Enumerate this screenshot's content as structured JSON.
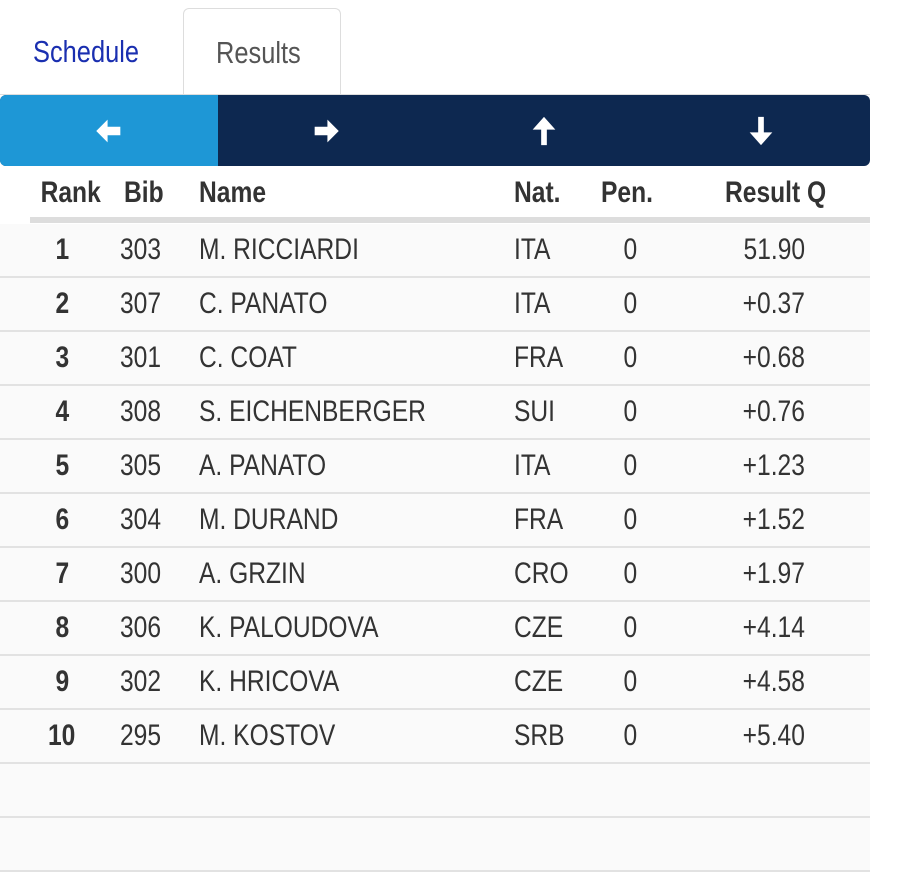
{
  "tabs": [
    {
      "label": "Schedule",
      "active": false
    },
    {
      "label": "Results",
      "active": true
    }
  ],
  "nav": [
    {
      "icon": "arrow-left-icon",
      "active": true
    },
    {
      "icon": "arrow-right-icon"
    },
    {
      "icon": "arrow-up-icon"
    },
    {
      "icon": "arrow-down-icon"
    }
  ],
  "colors": {
    "nav_bg": "#0d2850",
    "nav_active": "#1e97d6",
    "link": "#1a2fb0"
  },
  "headers": {
    "rank": "Rank",
    "bib": "Bib",
    "name": "Name",
    "nat": "Nat.",
    "pen": "Pen.",
    "result": "Result Q"
  },
  "rows": [
    {
      "rank": "1",
      "bib": "303",
      "name": "M. RICCIARDI",
      "nat": "ITA",
      "pen": "0",
      "result": "51.90"
    },
    {
      "rank": "2",
      "bib": "307",
      "name": "C. PANATO",
      "nat": "ITA",
      "pen": "0",
      "result": "+0.37"
    },
    {
      "rank": "3",
      "bib": "301",
      "name": "C. COAT",
      "nat": "FRA",
      "pen": "0",
      "result": "+0.68"
    },
    {
      "rank": "4",
      "bib": "308",
      "name": "S. EICHENBERGER",
      "nat": "SUI",
      "pen": "0",
      "result": "+0.76"
    },
    {
      "rank": "5",
      "bib": "305",
      "name": "A. PANATO",
      "nat": "ITA",
      "pen": "0",
      "result": "+1.23"
    },
    {
      "rank": "6",
      "bib": "304",
      "name": "M. DURAND",
      "nat": "FRA",
      "pen": "0",
      "result": "+1.52"
    },
    {
      "rank": "7",
      "bib": "300",
      "name": "A. GRZIN",
      "nat": "CRO",
      "pen": "0",
      "result": "+1.97"
    },
    {
      "rank": "8",
      "bib": "306",
      "name": "K. PALOUDOVA",
      "nat": "CZE",
      "pen": "0",
      "result": "+4.14"
    },
    {
      "rank": "9",
      "bib": "302",
      "name": "K. HRICOVA",
      "nat": "CZE",
      "pen": "0",
      "result": "+4.58"
    },
    {
      "rank": "10",
      "bib": "295",
      "name": "M. KOSTOV",
      "nat": "SRB",
      "pen": "0",
      "result": "+5.40"
    }
  ]
}
